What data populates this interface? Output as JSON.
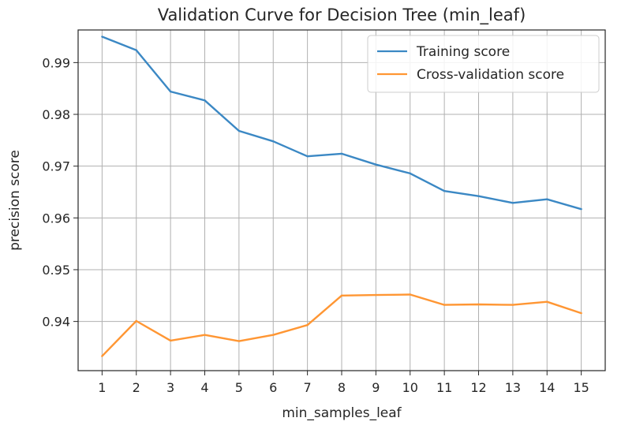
{
  "chart_data": {
    "type": "line",
    "title": "Validation Curve for Decision Tree (min_leaf)",
    "xlabel": "min_samples_leaf",
    "ylabel": "precision score",
    "x": [
      1,
      2,
      3,
      4,
      5,
      6,
      7,
      8,
      9,
      10,
      11,
      12,
      13,
      14,
      15
    ],
    "xlim": [
      0.3,
      15.7
    ],
    "ylim": [
      0.9305,
      0.9963
    ],
    "yticks": [
      0.94,
      0.95,
      0.96,
      0.97,
      0.98,
      0.99
    ],
    "ytick_labels": [
      "0.94",
      "0.95",
      "0.96",
      "0.97",
      "0.98",
      "0.99"
    ],
    "grid": true,
    "legend_position": "top-right",
    "series": [
      {
        "name": "Training score",
        "color": "#3b88c4",
        "values": [
          0.995,
          0.9924,
          0.9844,
          0.9827,
          0.9768,
          0.9748,
          0.9719,
          0.9724,
          0.9703,
          0.9686,
          0.9652,
          0.9642,
          0.9629,
          0.9636,
          0.9617
        ]
      },
      {
        "name": "Cross-validation score",
        "color": "#ff9633",
        "values": [
          0.9333,
          0.9401,
          0.9363,
          0.9374,
          0.9362,
          0.9374,
          0.9393,
          0.945,
          0.9451,
          0.9452,
          0.9432,
          0.9433,
          0.9432,
          0.9438,
          0.9416
        ]
      }
    ]
  }
}
